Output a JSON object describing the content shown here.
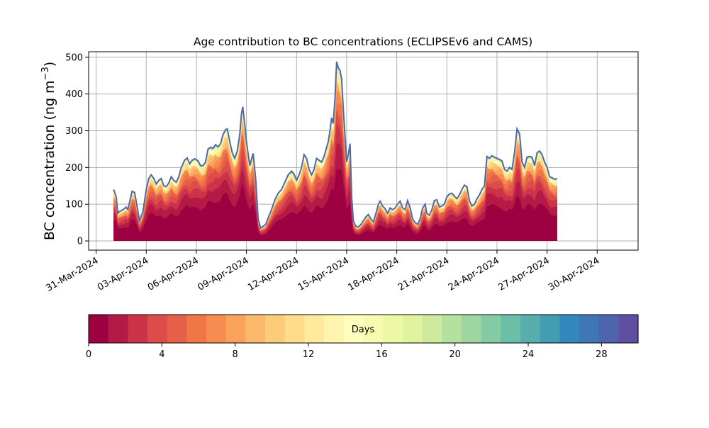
{
  "chart_data": {
    "type": "area",
    "title": "Age contribution to BC concentrations (ECLIPSEv6 and CAMS)",
    "xlabel": "",
    "ylabel": "BC concentration (ng m",
    "ylabel_exp": "−3",
    "ylabel_close": ")",
    "ylim": [
      -25,
      515
    ],
    "yticks": [
      0,
      100,
      200,
      300,
      400,
      500
    ],
    "grid": true,
    "x_tick_labels": [
      "31-Mar-2024",
      "03-Apr-2024",
      "06-Apr-2024",
      "09-Apr-2024",
      "12-Apr-2024",
      "15-Apr-2024",
      "18-Apr-2024",
      "21-Apr-2024",
      "24-Apr-2024",
      "27-Apr-2024",
      "30-Apr-2024"
    ],
    "x_tick_days": [
      0,
      3,
      6,
      9,
      12,
      15,
      18,
      21,
      24,
      27,
      30
    ],
    "xlim_days": [
      -0.45,
      32.45
    ],
    "x_unit": "days since 31-Mar-2024 00:00",
    "total_profile": [
      [
        1.05,
        140
      ],
      [
        1.2,
        120
      ],
      [
        1.3,
        75
      ],
      [
        1.4,
        80
      ],
      [
        1.6,
        85
      ],
      [
        1.8,
        92
      ],
      [
        1.9,
        85
      ],
      [
        2.0,
        105
      ],
      [
        2.15,
        135
      ],
      [
        2.3,
        132
      ],
      [
        2.45,
        95
      ],
      [
        2.6,
        55
      ],
      [
        2.8,
        80
      ],
      [
        3.0,
        140
      ],
      [
        3.15,
        170
      ],
      [
        3.3,
        180
      ],
      [
        3.45,
        170
      ],
      [
        3.6,
        155
      ],
      [
        3.75,
        165
      ],
      [
        3.9,
        170
      ],
      [
        4.05,
        150
      ],
      [
        4.2,
        148
      ],
      [
        4.35,
        158
      ],
      [
        4.5,
        175
      ],
      [
        4.65,
        165
      ],
      [
        4.8,
        160
      ],
      [
        4.95,
        175
      ],
      [
        5.1,
        200
      ],
      [
        5.3,
        220
      ],
      [
        5.45,
        226
      ],
      [
        5.6,
        210
      ],
      [
        5.75,
        220
      ],
      [
        5.9,
        224
      ],
      [
        6.1,
        218
      ],
      [
        6.25,
        205
      ],
      [
        6.4,
        205
      ],
      [
        6.55,
        215
      ],
      [
        6.7,
        250
      ],
      [
        6.85,
        255
      ],
      [
        7.0,
        252
      ],
      [
        7.15,
        262
      ],
      [
        7.3,
        256
      ],
      [
        7.45,
        265
      ],
      [
        7.6,
        290
      ],
      [
        7.75,
        303
      ],
      [
        7.85,
        305
      ],
      [
        8.0,
        270
      ],
      [
        8.15,
        240
      ],
      [
        8.3,
        225
      ],
      [
        8.45,
        245
      ],
      [
        8.6,
        290
      ],
      [
        8.7,
        345
      ],
      [
        8.78,
        365
      ],
      [
        8.9,
        315
      ],
      [
        9.0,
        270
      ],
      [
        9.2,
        205
      ],
      [
        9.4,
        238
      ],
      [
        9.55,
        170
      ],
      [
        9.7,
        60
      ],
      [
        9.85,
        35
      ],
      [
        10.0,
        40
      ],
      [
        10.15,
        45
      ],
      [
        10.3,
        62
      ],
      [
        10.5,
        85
      ],
      [
        10.7,
        112
      ],
      [
        10.9,
        130
      ],
      [
        11.1,
        140
      ],
      [
        11.3,
        160
      ],
      [
        11.5,
        180
      ],
      [
        11.7,
        190
      ],
      [
        11.85,
        182
      ],
      [
        12.0,
        165
      ],
      [
        12.15,
        180
      ],
      [
        12.3,
        200
      ],
      [
        12.45,
        235
      ],
      [
        12.6,
        225
      ],
      [
        12.75,
        195
      ],
      [
        12.9,
        180
      ],
      [
        13.05,
        195
      ],
      [
        13.2,
        225
      ],
      [
        13.35,
        220
      ],
      [
        13.5,
        215
      ],
      [
        13.65,
        230
      ],
      [
        13.8,
        255
      ],
      [
        13.9,
        270
      ],
      [
        14.0,
        300
      ],
      [
        14.1,
        335
      ],
      [
        14.2,
        320
      ],
      [
        14.3,
        390
      ],
      [
        14.4,
        488
      ],
      [
        14.5,
        470
      ],
      [
        14.6,
        465
      ],
      [
        14.7,
        440
      ],
      [
        14.8,
        360
      ],
      [
        14.9,
        285
      ],
      [
        15.0,
        215
      ],
      [
        15.1,
        235
      ],
      [
        15.2,
        265
      ],
      [
        15.3,
        120
      ],
      [
        15.4,
        55
      ],
      [
        15.55,
        40
      ],
      [
        15.7,
        38
      ],
      [
        15.85,
        45
      ],
      [
        16.0,
        55
      ],
      [
        16.15,
        65
      ],
      [
        16.3,
        72
      ],
      [
        16.45,
        60
      ],
      [
        16.6,
        52
      ],
      [
        16.75,
        75
      ],
      [
        16.9,
        100
      ],
      [
        17.0,
        108
      ],
      [
        17.15,
        95
      ],
      [
        17.3,
        88
      ],
      [
        17.45,
        75
      ],
      [
        17.6,
        90
      ],
      [
        17.75,
        85
      ],
      [
        17.9,
        90
      ],
      [
        18.05,
        100
      ],
      [
        18.2,
        108
      ],
      [
        18.35,
        90
      ],
      [
        18.5,
        85
      ],
      [
        18.65,
        110
      ],
      [
        18.8,
        90
      ],
      [
        18.95,
        60
      ],
      [
        19.1,
        50
      ],
      [
        19.25,
        45
      ],
      [
        19.4,
        60
      ],
      [
        19.55,
        90
      ],
      [
        19.7,
        100
      ],
      [
        19.8,
        75
      ],
      [
        19.95,
        70
      ],
      [
        20.1,
        85
      ],
      [
        20.25,
        110
      ],
      [
        20.4,
        112
      ],
      [
        20.55,
        92
      ],
      [
        20.7,
        95
      ],
      [
        20.85,
        100
      ],
      [
        21.0,
        120
      ],
      [
        21.15,
        128
      ],
      [
        21.3,
        130
      ],
      [
        21.45,
        122
      ],
      [
        21.6,
        115
      ],
      [
        21.75,
        125
      ],
      [
        21.9,
        140
      ],
      [
        22.05,
        152
      ],
      [
        22.2,
        148
      ],
      [
        22.35,
        110
      ],
      [
        22.5,
        95
      ],
      [
        22.65,
        100
      ],
      [
        22.8,
        115
      ],
      [
        22.95,
        125
      ],
      [
        23.1,
        140
      ],
      [
        23.25,
        150
      ],
      [
        23.4,
        230
      ],
      [
        23.55,
        225
      ],
      [
        23.7,
        232
      ],
      [
        23.85,
        228
      ],
      [
        24.0,
        225
      ],
      [
        24.15,
        222
      ],
      [
        24.3,
        218
      ],
      [
        24.45,
        195
      ],
      [
        24.6,
        190
      ],
      [
        24.75,
        200
      ],
      [
        24.9,
        195
      ],
      [
        25.05,
        240
      ],
      [
        25.2,
        305
      ],
      [
        25.35,
        292
      ],
      [
        25.5,
        215
      ],
      [
        25.65,
        200
      ],
      [
        25.8,
        228
      ],
      [
        25.95,
        230
      ],
      [
        26.1,
        228
      ],
      [
        26.25,
        205
      ],
      [
        26.4,
        240
      ],
      [
        26.55,
        245
      ],
      [
        26.7,
        235
      ],
      [
        26.85,
        215
      ],
      [
        27.0,
        200
      ],
      [
        27.15,
        175
      ],
      [
        27.3,
        172
      ],
      [
        27.45,
        168
      ],
      [
        27.6,
        170
      ]
    ],
    "layer_fractions": [
      0.42,
      0.55,
      0.64,
      0.71,
      0.76,
      0.8,
      0.835,
      0.86,
      0.88,
      0.895,
      0.91,
      0.92,
      0.93,
      0.94,
      0.948,
      0.956,
      0.963,
      0.969,
      0.974,
      0.979,
      0.983,
      0.987,
      0.99,
      0.993,
      0.995,
      0.997,
      0.998,
      0.999,
      1.0,
      1.0
    ],
    "colorbar": {
      "label": "Days",
      "min": 0,
      "max": 30,
      "ticks": [
        0,
        4,
        8,
        12,
        16,
        20,
        24,
        28
      ],
      "colors": [
        "#9e0142",
        "#b51945",
        "#cc3349",
        "#dd4b4b",
        "#e66049",
        "#ef7646",
        "#f68c50",
        "#f9a35d",
        "#fbb96c",
        "#fdcc7b",
        "#fedc8c",
        "#fee99c",
        "#fff5ae",
        "#fffebe",
        "#f7fbb2",
        "#edf8a5",
        "#e0f39e",
        "#cdeb9e",
        "#b5e19e",
        "#9dd6a3",
        "#83cba5",
        "#6bbfa6",
        "#57aeac",
        "#449cb2",
        "#3288bc",
        "#3f76b6",
        "#4d64ad",
        "#5e4fa2"
      ]
    }
  }
}
